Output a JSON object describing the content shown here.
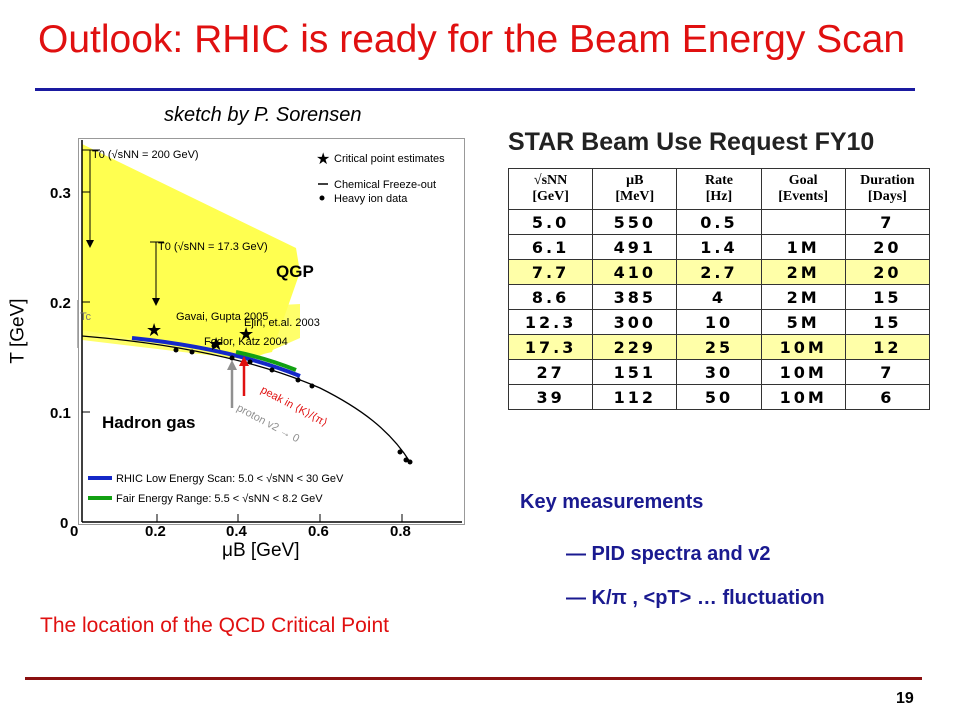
{
  "slide": {
    "title": "Outlook: RHIC is ready for the Beam Energy Scan",
    "credit": "sketch by P. Sorensen",
    "caption": "The location of the QCD Critical Point",
    "page_number": "19"
  },
  "phase_diagram": {
    "y_axis_label": "T [GeV]",
    "x_axis_label": "μB [GeV]",
    "y_ticks": [
      "0.3",
      "0.2",
      "0.1",
      "0"
    ],
    "x_ticks": [
      "0",
      "0.2",
      "0.4",
      "0.6",
      "0.8"
    ],
    "legend": [
      "Critical point estimates",
      "Chemical Freeze-out",
      "Heavy ion data"
    ],
    "t0_high": "T0 (√sNN = 200 GeV)",
    "t0_low": "T0 (√sNN = 17.3 GeV)",
    "tc_label": "Tc",
    "estimates": [
      "Gavai, Gupta 2005",
      "Ejiri, et.al. 2003",
      "Fodor, Katz 2004"
    ],
    "region_qgp": "QGP",
    "region_hadron": "Hadron gas",
    "peak_label": "peak in ⟨K⟩/⟨π⟩",
    "proton_label": "proton v2 → 0",
    "scan_legend_rhic": "RHIC Low Energy Scan: 5.0 < √sNN < 30 GeV",
    "scan_legend_fair": "Fair Energy Range: 5.5 < √sNN < 8.2 GeV",
    "colors": {
      "qgp_fill": "#ffff50",
      "rhic_scan": "#1428c8",
      "fair_scan": "#12a012",
      "peak_arrow": "#e01010",
      "proton_arrow": "#909090"
    }
  },
  "beam_table": {
    "title": "STAR Beam Use Request FY10",
    "headers": [
      [
        "√sNN",
        "[GeV]"
      ],
      [
        "μB",
        "[MeV]"
      ],
      [
        "Rate",
        "[Hz]"
      ],
      [
        "Goal",
        "[Events]"
      ],
      [
        "Duration",
        "[Days]"
      ]
    ],
    "rows": [
      [
        "5.0",
        "550",
        "0.5",
        "",
        "7"
      ],
      [
        "6.1",
        "491",
        "1.4",
        "1M",
        "20"
      ],
      [
        "7.7",
        "410",
        "2.7",
        "2M",
        "20"
      ],
      [
        "8.6",
        "385",
        "4",
        "2M",
        "15"
      ],
      [
        "12.3",
        "300",
        "10",
        "5M",
        "15"
      ],
      [
        "17.3",
        "229",
        "25",
        "10M",
        "12"
      ],
      [
        "27",
        "151",
        "30",
        "10M",
        "7"
      ],
      [
        "39",
        "112",
        "50",
        "10M",
        "6"
      ]
    ],
    "highlight_rows": [
      2,
      5
    ],
    "highlight_color": "#ffffa8"
  },
  "key": {
    "heading": "Key measurements",
    "items": [
      "— PID spectra and v2",
      "— K/π , <pT> … fluctuation"
    ]
  }
}
